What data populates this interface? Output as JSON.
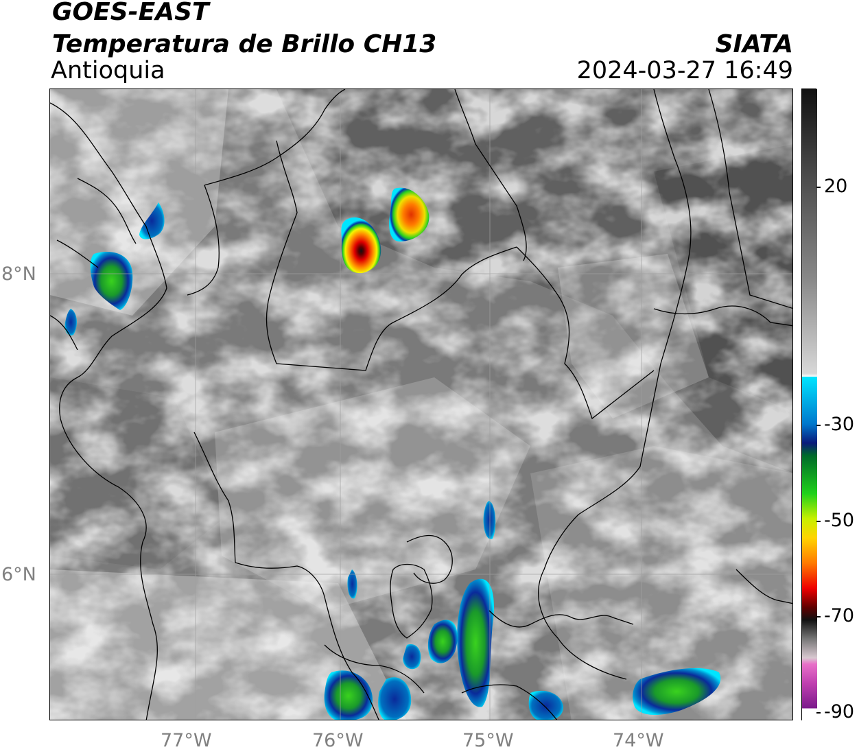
{
  "header": {
    "satellite": "GOES-EAST",
    "product": "Temperatura de Brillo CH13",
    "region": "Antioquia",
    "organization": "SIATA",
    "datetime": "2024-03-27 16:49"
  },
  "map": {
    "lon_labels": [
      "77°W",
      "76°W",
      "75°W",
      "74°W"
    ],
    "lat_labels": [
      "8°N",
      "6°N"
    ]
  },
  "colorbar": {
    "tick_labels": [
      "20",
      "-30",
      "-50",
      "-70",
      "-90"
    ],
    "range": [
      -90,
      38
    ],
    "colors": {
      "warm_gray": "#4a4a4a",
      "light": "#f2f2f2",
      "cyan": "#00e5ff",
      "blue": "#0033aa",
      "green": "#2ad11e",
      "yellow": "#f5f500",
      "orange": "#ff8c00",
      "red": "#e00000",
      "black": "#111111",
      "pink": "#e060c0",
      "purple": "#7a1a8a"
    }
  }
}
